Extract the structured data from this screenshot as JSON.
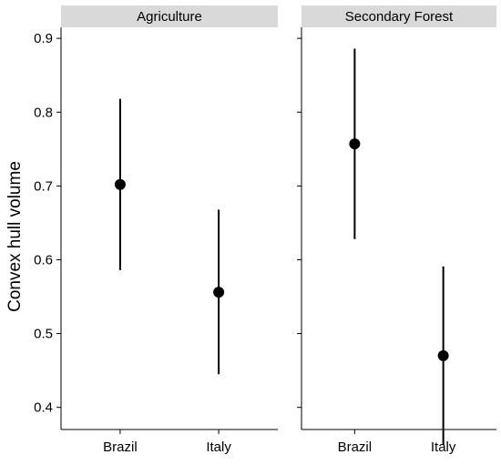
{
  "chart_data": {
    "type": "pointrange",
    "ylabel": "Convex hull volume",
    "ylim": [
      0.37,
      0.915
    ],
    "yticks": [
      0.4,
      0.5,
      0.6,
      0.7,
      0.8,
      0.9
    ],
    "ytick_labels": [
      "0.4",
      "0.5",
      "0.6",
      "0.7",
      "0.8",
      "0.9"
    ],
    "categories": [
      "Brazil",
      "Italy"
    ],
    "grid": false,
    "panels": [
      {
        "title": "Agriculture",
        "points": [
          {
            "x": "Brazil",
            "y": 0.702,
            "ymin": 0.586,
            "ymax": 0.818
          },
          {
            "x": "Italy",
            "y": 0.556,
            "ymin": 0.445,
            "ymax": 0.668
          }
        ]
      },
      {
        "title": "Secondary Forest",
        "points": [
          {
            "x": "Brazil",
            "y": 0.757,
            "ymin": 0.628,
            "ymax": 0.886
          },
          {
            "x": "Italy",
            "y": 0.47,
            "ymin": 0.349,
            "ymax": 0.591
          }
        ]
      }
    ]
  }
}
